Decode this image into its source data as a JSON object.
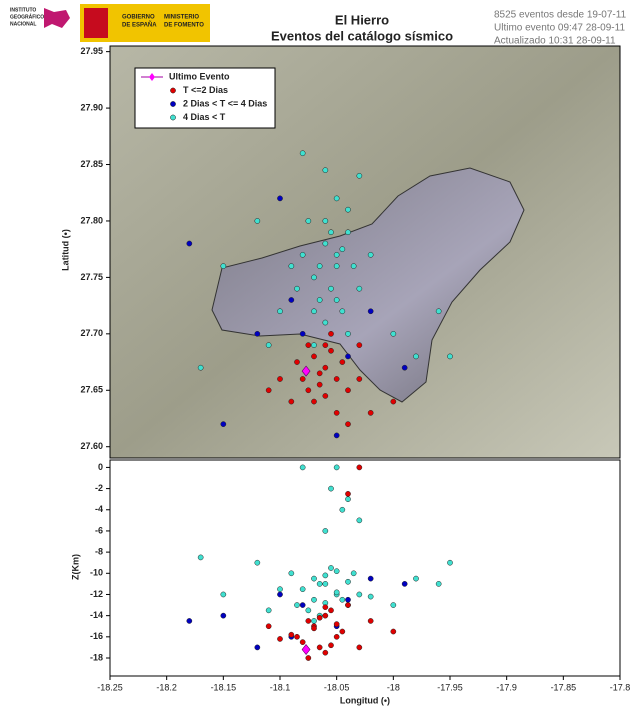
{
  "header": {
    "institute": [
      "INSTITUTO",
      "GEOGRÁFICO",
      "NACIONAL"
    ],
    "government": [
      "GOBIERNO",
      "DE ESPAÑA"
    ],
    "ministry": [
      "MINISTERIO",
      "DE FOMENTO"
    ],
    "info": [
      "8525 eventos desde 19-07-11",
      "Ultimo evento 09:47 28-09-11",
      "Actualizado   10:31  28-09-11"
    ]
  },
  "chart_data": [
    {
      "type": "scatter",
      "title": "El Hierro",
      "subtitle": "Eventos del catálogo sísmico",
      "y_label": "Latitud (•)",
      "legend": "upper left",
      "xlim": [
        -18.25,
        -17.8
      ],
      "ylim": [
        27.59,
        27.955
      ],
      "yticks": [
        27.95,
        {
          "value": 27.9,
          "label": "27.90"
        },
        27.85,
        {
          "value": 27.8,
          "label": "27.80"
        },
        27.75,
        {
          "value": 27.7,
          "label": "27.70"
        },
        27.65,
        {
          "value": 27.6,
          "label": "27.60"
        }
      ],
      "series": [
        {
          "name": "Ultimo Evento",
          "color": "#ff00ff",
          "marker": "diamond",
          "x": [
            -18.077
          ],
          "values": [
            27.667
          ]
        },
        {
          "name": "T <=2 Dias",
          "color": "#e00000",
          "x": [
            -18.07,
            -18.06,
            -18.05,
            -18.065,
            -18.055,
            -18.045,
            -18.075,
            -18.08,
            -18.04,
            -18.06,
            -18.07,
            -18.05,
            -18.03,
            -18.085,
            -18.06,
            -18.09,
            -18.02,
            -18.1,
            -18.04,
            -18.11,
            -18.03,
            -18.065,
            -18.055,
            -18.0,
            -18.075
          ],
          "values": [
            27.68,
            27.67,
            27.66,
            27.655,
            27.685,
            27.675,
            27.69,
            27.66,
            27.65,
            27.645,
            27.64,
            27.63,
            27.66,
            27.675,
            27.69,
            27.64,
            27.63,
            27.66,
            27.62,
            27.65,
            27.69,
            27.665,
            27.7,
            27.64,
            27.65
          ]
        },
        {
          "name": "2 Dias  < T <= 4 Dias",
          "color": "#0000c0",
          "x": [
            -18.08,
            -18.1,
            -18.15,
            -18.05,
            -17.99,
            -18.09,
            -18.04,
            -18.12,
            -18.18,
            -18.02
          ],
          "values": [
            27.7,
            27.82,
            27.62,
            27.61,
            27.67,
            27.73,
            27.68,
            27.7,
            27.78,
            27.72
          ]
        },
        {
          "name": "4 Dias <  T",
          "color": "#40e0d0",
          "x": [
            -18.06,
            -18.05,
            -18.07,
            -18.04,
            -18.08,
            -18.055,
            -18.045,
            -18.065,
            -18.035,
            -18.075,
            -18.05,
            -18.06,
            -18.04,
            -18.085,
            -18.03,
            -18.07,
            -18.055,
            -18.045,
            -18.065,
            -18.05,
            -18.09,
            -18.02,
            -18.06,
            -18.1,
            -18.0,
            -18.12,
            -17.98,
            -18.15,
            -18.17,
            -17.95,
            -18.03,
            -18.08,
            -18.11,
            -17.96,
            -18.04,
            -18.07,
            -18.05,
            -18.06
          ],
          "values": [
            27.78,
            27.76,
            27.75,
            27.79,
            27.77,
            27.74,
            27.72,
            27.73,
            27.76,
            27.8,
            27.82,
            27.71,
            27.7,
            27.74,
            27.74,
            27.69,
            27.79,
            27.775,
            27.76,
            27.73,
            27.76,
            27.77,
            27.845,
            27.72,
            27.7,
            27.8,
            27.68,
            27.76,
            27.67,
            27.68,
            27.84,
            27.86,
            27.69,
            27.72,
            27.81,
            27.72,
            27.77,
            27.8
          ]
        }
      ]
    },
    {
      "type": "scatter",
      "y_label": "Z(Km)",
      "x_label": "Longitud (•)",
      "xlim": [
        -18.25,
        -17.8
      ],
      "ylim": [
        -19.7,
        0.7
      ],
      "xticks": [
        -18.25,
        -18.2,
        -18.15,
        -18.1,
        -18.05,
        -18,
        -17.95,
        -17.9,
        -17.85,
        -17.8
      ],
      "yticks": [
        0,
        -2,
        -4,
        -6,
        -8,
        -10,
        -12,
        -14,
        -16,
        -18
      ],
      "series": [
        {
          "color": "#ff00ff",
          "marker": "diamond",
          "x": [
            -18.077
          ],
          "values": [
            -17.2
          ]
        },
        {
          "color": "#e00000",
          "x": [
            -18.07,
            -18.06,
            -18.05,
            -18.065,
            -18.055,
            -18.045,
            -18.075,
            -18.08,
            -18.04,
            -18.06,
            -18.07,
            -18.05,
            -18.03,
            -18.085,
            -18.06,
            -18.09,
            -18.02,
            -18.1,
            -18.04,
            -18.11,
            -18.03,
            -18.065,
            -18.055,
            -18.0,
            -18.075
          ],
          "values": [
            -15,
            -14,
            -16,
            -17,
            -13.5,
            -15.5,
            -14.5,
            -16.5,
            -13,
            -17.5,
            -15.2,
            -14.8,
            0,
            -16,
            -13.2,
            -15.8,
            -14.5,
            -16.2,
            -2.5,
            -15,
            -17,
            -14.2,
            -16.8,
            -15.5,
            -18
          ]
        },
        {
          "color": "#0000c0",
          "x": [
            -18.08,
            -18.1,
            -18.15,
            -18.05,
            -17.99,
            -18.09,
            -18.04,
            -18.12,
            -18.18,
            -18.02
          ],
          "values": [
            -13,
            -12,
            -14,
            -15,
            -11,
            -16,
            -12.5,
            -17,
            -14.5,
            -10.5
          ]
        },
        {
          "color": "#40e0d0",
          "x": [
            -18.06,
            -18.05,
            -18.07,
            -18.04,
            -18.08,
            -18.055,
            -18.045,
            -18.065,
            -18.035,
            -18.075,
            -18.05,
            -18.06,
            -18.04,
            -18.085,
            -18.03,
            -18.07,
            -18.055,
            -18.045,
            -18.065,
            -18.05,
            -18.09,
            -18.02,
            -18.06,
            -18.1,
            -18.0,
            -18.12,
            -17.98,
            -18.15,
            -18.17,
            -17.95,
            -18.03,
            -18.08,
            -18.11,
            -17.96,
            -18.04,
            -18.07,
            -18.05,
            -18.06
          ],
          "values": [
            -11,
            -12,
            -10.5,
            -13,
            -11.5,
            -9.5,
            -12.5,
            -14,
            -10,
            -13.5,
            -11.8,
            -12.8,
            -10.8,
            -13,
            -12,
            -14.5,
            -2,
            -4,
            -11,
            0,
            -10,
            -12.2,
            -6,
            -11.5,
            -13,
            -9,
            -10.5,
            -12,
            -8.5,
            -9,
            -5,
            0,
            -13.5,
            -11,
            -3,
            -12.5,
            -9.8,
            -10.2
          ]
        }
      ]
    }
  ]
}
